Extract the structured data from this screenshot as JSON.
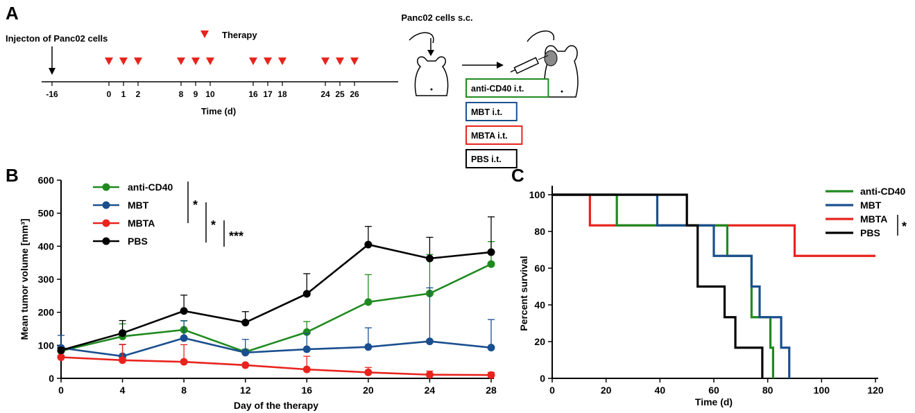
{
  "colors": {
    "anti_cd40": "#1f8a1f",
    "mbt": "#1a4f8f",
    "mbta": "#e8231d",
    "pbs": "#000000",
    "mouse_tumor": "#8a8a8a"
  },
  "panel_a": {
    "letter": "A",
    "injection_label": "Injecton of Panc02 cells",
    "therapy_legend": "Therapy",
    "axis_title": "Time (d)",
    "ticks": [
      "-16",
      "0",
      "1",
      "2",
      "8",
      "9",
      "10",
      "16",
      "17",
      "18",
      "24",
      "25",
      "26"
    ],
    "therapy_days": [
      0,
      1,
      2,
      8,
      9,
      10,
      16,
      17,
      18,
      24,
      25,
      26
    ],
    "injection_day": -16,
    "mouse_label": "Panc02 cells s.c.",
    "treatment_boxes": [
      {
        "label": "anti-CD40 i.t.",
        "color": "#1f8a1f"
      },
      {
        "label": "MBT i.t.",
        "color": "#1a4f8f"
      },
      {
        "label": "MBTA i.t.",
        "color": "#e8231d"
      },
      {
        "label": "PBS i.t.",
        "color": "#000000"
      }
    ]
  },
  "chart_data": [
    {
      "panel": "B",
      "type": "line",
      "ylabel": "Mean tumor volume [mm³]",
      "xlabel": "Day of the therapy",
      "xlim": [
        0,
        28
      ],
      "ylim": [
        0,
        600
      ],
      "xticks": [
        0,
        4,
        8,
        12,
        16,
        20,
        24,
        28
      ],
      "yticks": [
        0,
        100,
        200,
        300,
        400,
        500,
        600
      ],
      "x": [
        0,
        4,
        8,
        12,
        16,
        20,
        24,
        28
      ],
      "legend_position": "top-left",
      "series": [
        {
          "name": "anti-CD40",
          "color": "#1f8a1f",
          "values": [
            83,
            127,
            147,
            80,
            140,
            231,
            257,
            346
          ],
          "error": [
            5,
            38,
            28,
            8,
            32,
            83,
            118,
            68
          ]
        },
        {
          "name": "MBT",
          "color": "#1a4f8f",
          "values": [
            92,
            67,
            122,
            78,
            88,
            95,
            112,
            93
          ],
          "error": [
            38,
            35,
            52,
            40,
            48,
            58,
            162,
            85
          ]
        },
        {
          "name": "MBTA",
          "color": "#e8231d",
          "values": [
            64,
            55,
            50,
            40,
            27,
            18,
            11,
            10
          ],
          "error": [
            6,
            48,
            52,
            5,
            40,
            15,
            11,
            8
          ]
        },
        {
          "name": "PBS",
          "color": "#000000",
          "values": [
            85,
            137,
            204,
            169,
            256,
            405,
            363,
            382
          ],
          "error": [
            8,
            38,
            48,
            33,
            61,
            55,
            64,
            107
          ]
        }
      ],
      "significance": [
        "*",
        "*",
        "***"
      ]
    },
    {
      "panel": "C",
      "type": "line",
      "ylabel": "Percent survival",
      "xlabel": "Time (d)",
      "xlim": [
        0,
        120
      ],
      "ylim": [
        0,
        100
      ],
      "xticks": [
        0,
        20,
        40,
        60,
        80,
        100,
        120
      ],
      "yticks": [
        0,
        20,
        40,
        60,
        80,
        100
      ],
      "legend_position": "top-right",
      "series": [
        {
          "name": "anti-CD40",
          "color": "#1f8a1f",
          "points": [
            [
              0,
              100
            ],
            [
              24,
              100
            ],
            [
              24,
              83.3
            ],
            [
              65,
              83.3
            ],
            [
              65,
              66.7
            ],
            [
              74,
              66.7
            ],
            [
              74,
              33.3
            ],
            [
              81,
              33.3
            ],
            [
              81,
              16.7
            ],
            [
              82,
              16.7
            ],
            [
              82,
              0
            ]
          ]
        },
        {
          "name": "MBT",
          "color": "#1a4f8f",
          "points": [
            [
              0,
              100
            ],
            [
              39,
              100
            ],
            [
              39,
              83.3
            ],
            [
              60,
              83.3
            ],
            [
              60,
              66.7
            ],
            [
              74,
              66.7
            ],
            [
              74,
              50
            ],
            [
              77,
              50
            ],
            [
              77,
              33.3
            ],
            [
              85,
              33.3
            ],
            [
              85,
              16.7
            ],
            [
              88,
              16.7
            ],
            [
              88,
              0
            ]
          ]
        },
        {
          "name": "MBTA",
          "color": "#e8231d",
          "points": [
            [
              0,
              100
            ],
            [
              14,
              100
            ],
            [
              14,
              83.3
            ],
            [
              90,
              83.3
            ],
            [
              90,
              66.7
            ],
            [
              120,
              66.7
            ]
          ]
        },
        {
          "name": "PBS",
          "color": "#000000",
          "points": [
            [
              0,
              100
            ],
            [
              50,
              100
            ],
            [
              50,
              83.3
            ],
            [
              54,
              83.3
            ],
            [
              54,
              50
            ],
            [
              64,
              50
            ],
            [
              64,
              33.3
            ],
            [
              68,
              33.3
            ],
            [
              68,
              16.7
            ],
            [
              78,
              16.7
            ],
            [
              78,
              0
            ]
          ]
        }
      ],
      "significance": [
        "*"
      ]
    }
  ]
}
